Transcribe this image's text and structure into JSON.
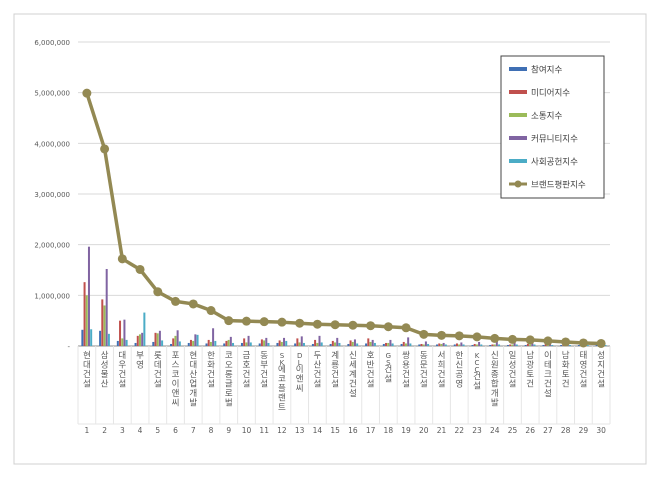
{
  "chart_data": {
    "type": "bar",
    "categories": [
      "현대건설",
      "삼성물산",
      "대우건설",
      "부영",
      "롯데건설",
      "포스코이앤씨",
      "현대산업개발",
      "한화건설",
      "코오롱글로벌",
      "금호건설",
      "동부건설",
      "SK에코플랜트",
      "DL이앤씨",
      "두산건설",
      "계룡건설",
      "신세계건설",
      "호반건설",
      "GS건설",
      "쌍용건설",
      "동문건설",
      "서희건설",
      "한신공영",
      "KCC건설",
      "신원종합개발",
      "일성건설",
      "남광토건",
      "이테크건설",
      "남화토건",
      "태영건설",
      "성지건설"
    ],
    "ranks": [
      "1",
      "2",
      "3",
      "4",
      "5",
      "6",
      "7",
      "8",
      "9",
      "10",
      "11",
      "12",
      "13",
      "14",
      "15",
      "16",
      "17",
      "18",
      "19",
      "20",
      "21",
      "22",
      "23",
      "24",
      "25",
      "26",
      "27",
      "28",
      "29",
      "30"
    ],
    "series": [
      {
        "name": "참여지수",
        "color": "#3f6fb4",
        "kind": "bar",
        "values": [
          320000,
          300000,
          100000,
          60000,
          80000,
          40000,
          60000,
          50000,
          50000,
          60000,
          50000,
          60000,
          50000,
          40000,
          40000,
          40000,
          50000,
          40000,
          40000,
          30000,
          30000,
          30000,
          20000,
          20000,
          20000,
          20000,
          20000,
          20000,
          20000,
          20000
        ]
      },
      {
        "name": "미디어지수",
        "color": "#c0504d",
        "kind": "bar",
        "values": [
          1260000,
          920000,
          500000,
          200000,
          260000,
          150000,
          120000,
          120000,
          100000,
          150000,
          130000,
          110000,
          150000,
          120000,
          100000,
          110000,
          150000,
          60000,
          80000,
          40000,
          50000,
          50000,
          40000,
          30000,
          30000,
          40000,
          30000,
          30000,
          30000,
          20000
        ]
      },
      {
        "name": "소통지수",
        "color": "#9bbb59",
        "kind": "bar",
        "values": [
          1000000,
          800000,
          150000,
          230000,
          250000,
          200000,
          100000,
          80000,
          120000,
          70000,
          110000,
          80000,
          70000,
          60000,
          70000,
          80000,
          80000,
          60000,
          50000,
          30000,
          40000,
          30000,
          30000,
          30000,
          30000,
          30000,
          20000,
          20000,
          20000,
          20000
        ]
      },
      {
        "name": "커뮤니티지수",
        "color": "#8064a2",
        "kind": "bar",
        "values": [
          1960000,
          1520000,
          520000,
          260000,
          300000,
          310000,
          230000,
          350000,
          180000,
          200000,
          160000,
          160000,
          190000,
          200000,
          160000,
          130000,
          120000,
          120000,
          170000,
          90000,
          60000,
          70000,
          80000,
          110000,
          70000,
          80000,
          60000,
          40000,
          40000,
          30000
        ]
      },
      {
        "name": "사회공헌지수",
        "color": "#4bacc6",
        "kind": "bar",
        "values": [
          330000,
          240000,
          120000,
          660000,
          110000,
          90000,
          220000,
          100000,
          60000,
          70000,
          60000,
          100000,
          60000,
          70000,
          60000,
          50000,
          60000,
          50000,
          50000,
          40000,
          30000,
          30000,
          30000,
          30000,
          30000,
          30000,
          20000,
          20000,
          20000,
          20000
        ]
      },
      {
        "name": "브랜드평판지수",
        "color": "#938953",
        "kind": "line",
        "values": [
          4990000,
          3890000,
          1720000,
          1510000,
          1070000,
          880000,
          830000,
          700000,
          500000,
          490000,
          480000,
          470000,
          450000,
          430000,
          420000,
          410000,
          400000,
          380000,
          360000,
          230000,
          210000,
          200000,
          180000,
          150000,
          130000,
          120000,
          100000,
          80000,
          60000,
          50000
        ]
      }
    ],
    "y_ticks": [
      "6,000,000",
      "5,000,000",
      "4,000,000",
      "3,000,000",
      "2,000,000",
      "1,000,000",
      "-"
    ],
    "ylim": [
      0,
      6000000
    ],
    "grid": true,
    "legend": "right"
  }
}
